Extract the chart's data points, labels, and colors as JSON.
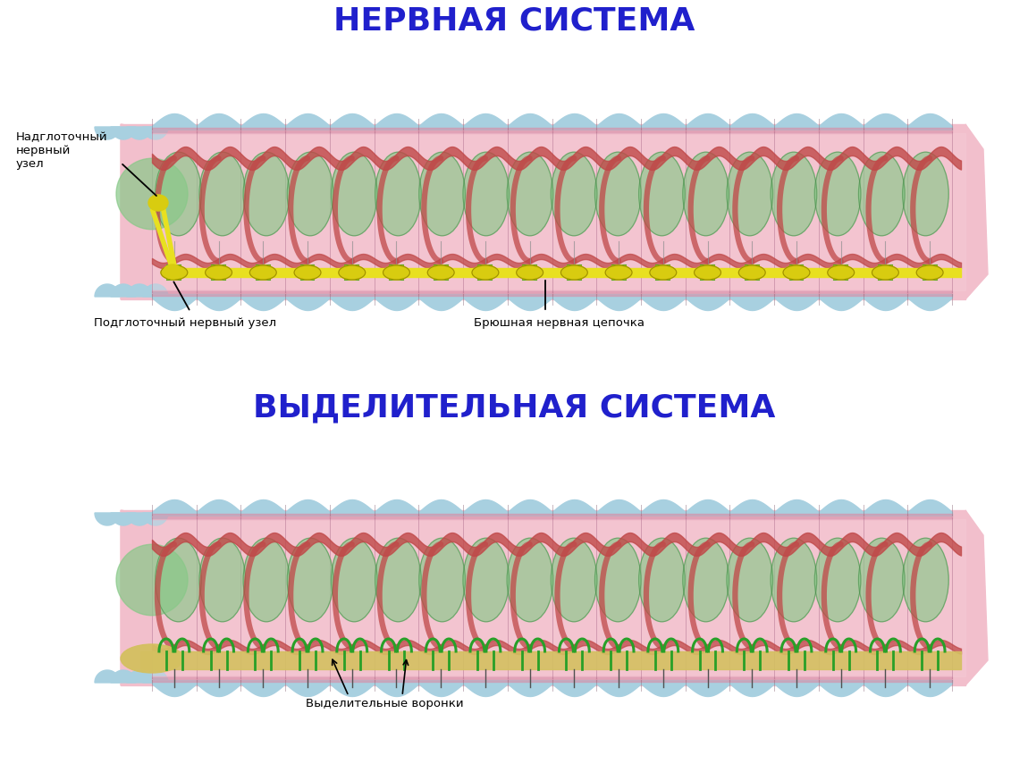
{
  "title_top": "НЕРВНАЯ СИСТЕМА",
  "title_bottom": "ВЫДЕЛИТЕЛЬНАЯ СИСТЕМА",
  "title_color": "#2020cc",
  "bg_color": "#ffffff",
  "label_nadglotochny": "Надглоточный\nнервный\nузел",
  "label_podglotochny": "Подглоточный нервный узел",
  "label_bryushnaya": "Брюшная нервная цепочка",
  "label_vydelitelnye": "Выделительные воронки",
  "worm_body_color": "#f2bfcc",
  "worm_pink_inner": "#e8a8bb",
  "worm_blue_top": "#a8d0e0",
  "worm_pink_band": "#d890a8",
  "worm_intestine_color": "#88c888",
  "worm_blood_color": "#c04848",
  "nerve_chain_color": "#e8e020",
  "nerve_ganglion_color": "#d8cc10",
  "nerve_green": "#60a820",
  "excretory_color": "#28a028",
  "excretory_bg_color": "#d4c060",
  "seg_line_color": "#b07090",
  "bristle_color": "#606060",
  "n_seg": 18,
  "worm1_wx0": 115,
  "worm1_wx1": 1090,
  "worm1_wcy": 195,
  "worm1_wh": 180,
  "worm2_wx0": 115,
  "worm2_wx1": 1090,
  "worm2_wcy": 195,
  "worm2_wh": 180
}
